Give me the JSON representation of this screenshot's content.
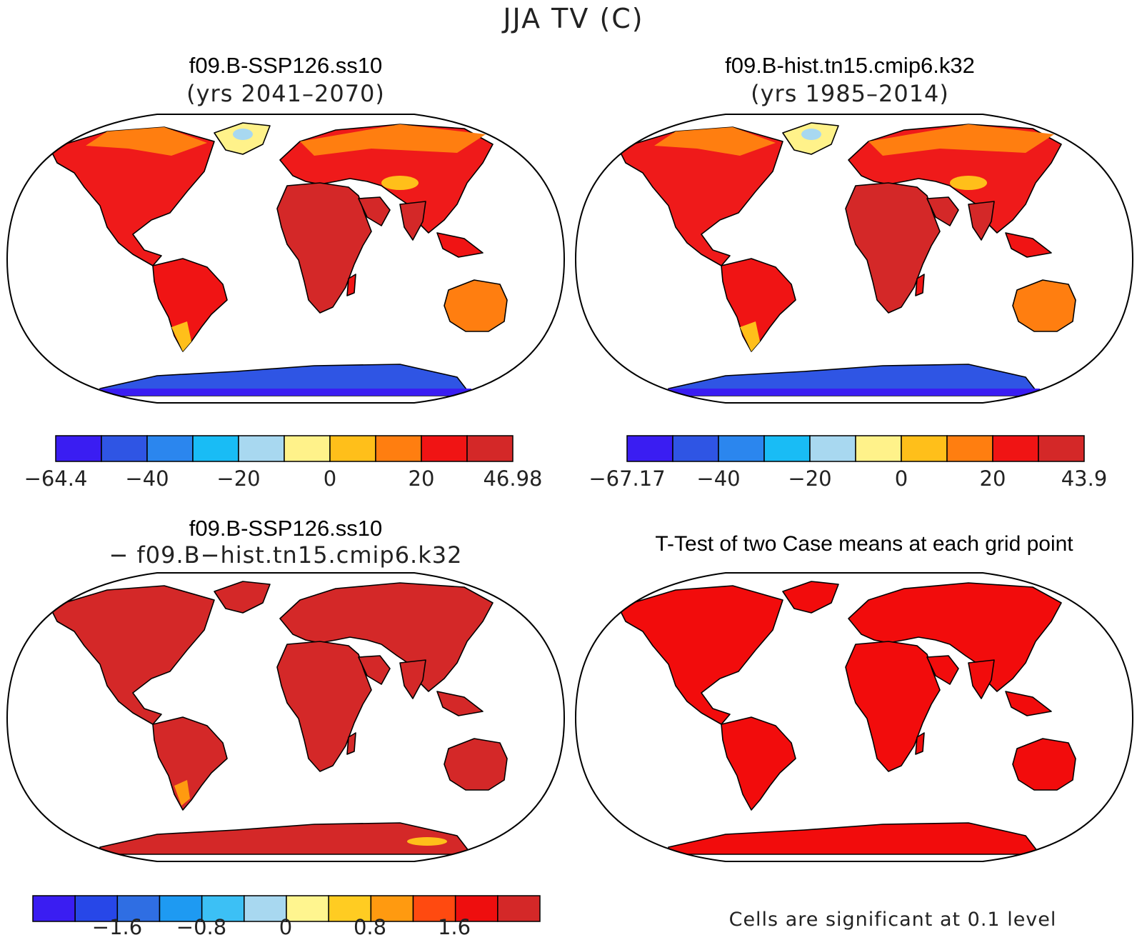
{
  "title": "JJA TV (C)",
  "panels": [
    {
      "title": "f09.B-SSP126.ss10",
      "subtitle": "(yrs 2041–2070)",
      "colorbar": {
        "colors": [
          "#3a1df2",
          "#2f55e4",
          "#2b86ee",
          "#19bcf5",
          "#a8d8f0",
          "#fff28a",
          "#ffbf1a",
          "#ff7e10",
          "#f01414",
          "#d42828"
        ],
        "tick_labels": [
          "−64.4",
          "−40",
          "−20",
          "0",
          "20",
          "46.98"
        ]
      }
    },
    {
      "title": "f09.B-hist.tn15.cmip6.k32",
      "subtitle": "(yrs 1985–2014)",
      "colorbar": {
        "colors": [
          "#3a1df2",
          "#2f55e4",
          "#2b86ee",
          "#19bcf5",
          "#a8d8f0",
          "#fff28a",
          "#ffbf1a",
          "#ff7e10",
          "#f01414",
          "#d42828"
        ],
        "tick_labels": [
          "−67.17",
          "−40",
          "−20",
          "0",
          "20",
          "43.9"
        ]
      }
    },
    {
      "title": "f09.B-SSP126.ss10",
      "subtitle": "− f09.B−hist.tn15.cmip6.k32",
      "colorbar": {
        "colors": [
          "#3a1df2",
          "#2747e8",
          "#2f6ee3",
          "#1e9af2",
          "#3cc0f5",
          "#a8d8f0",
          "#fff58f",
          "#ffcc22",
          "#ff9a10",
          "#ff4a10",
          "#ee0e0e",
          "#d42828"
        ],
        "tick_labels": [
          "−1.6",
          "−0.8",
          "0",
          "0.8",
          "1.6"
        ]
      }
    },
    {
      "title": "T-Test of two Case means at each grid point",
      "note": "Cells are significant at 0.1 level"
    }
  ]
}
